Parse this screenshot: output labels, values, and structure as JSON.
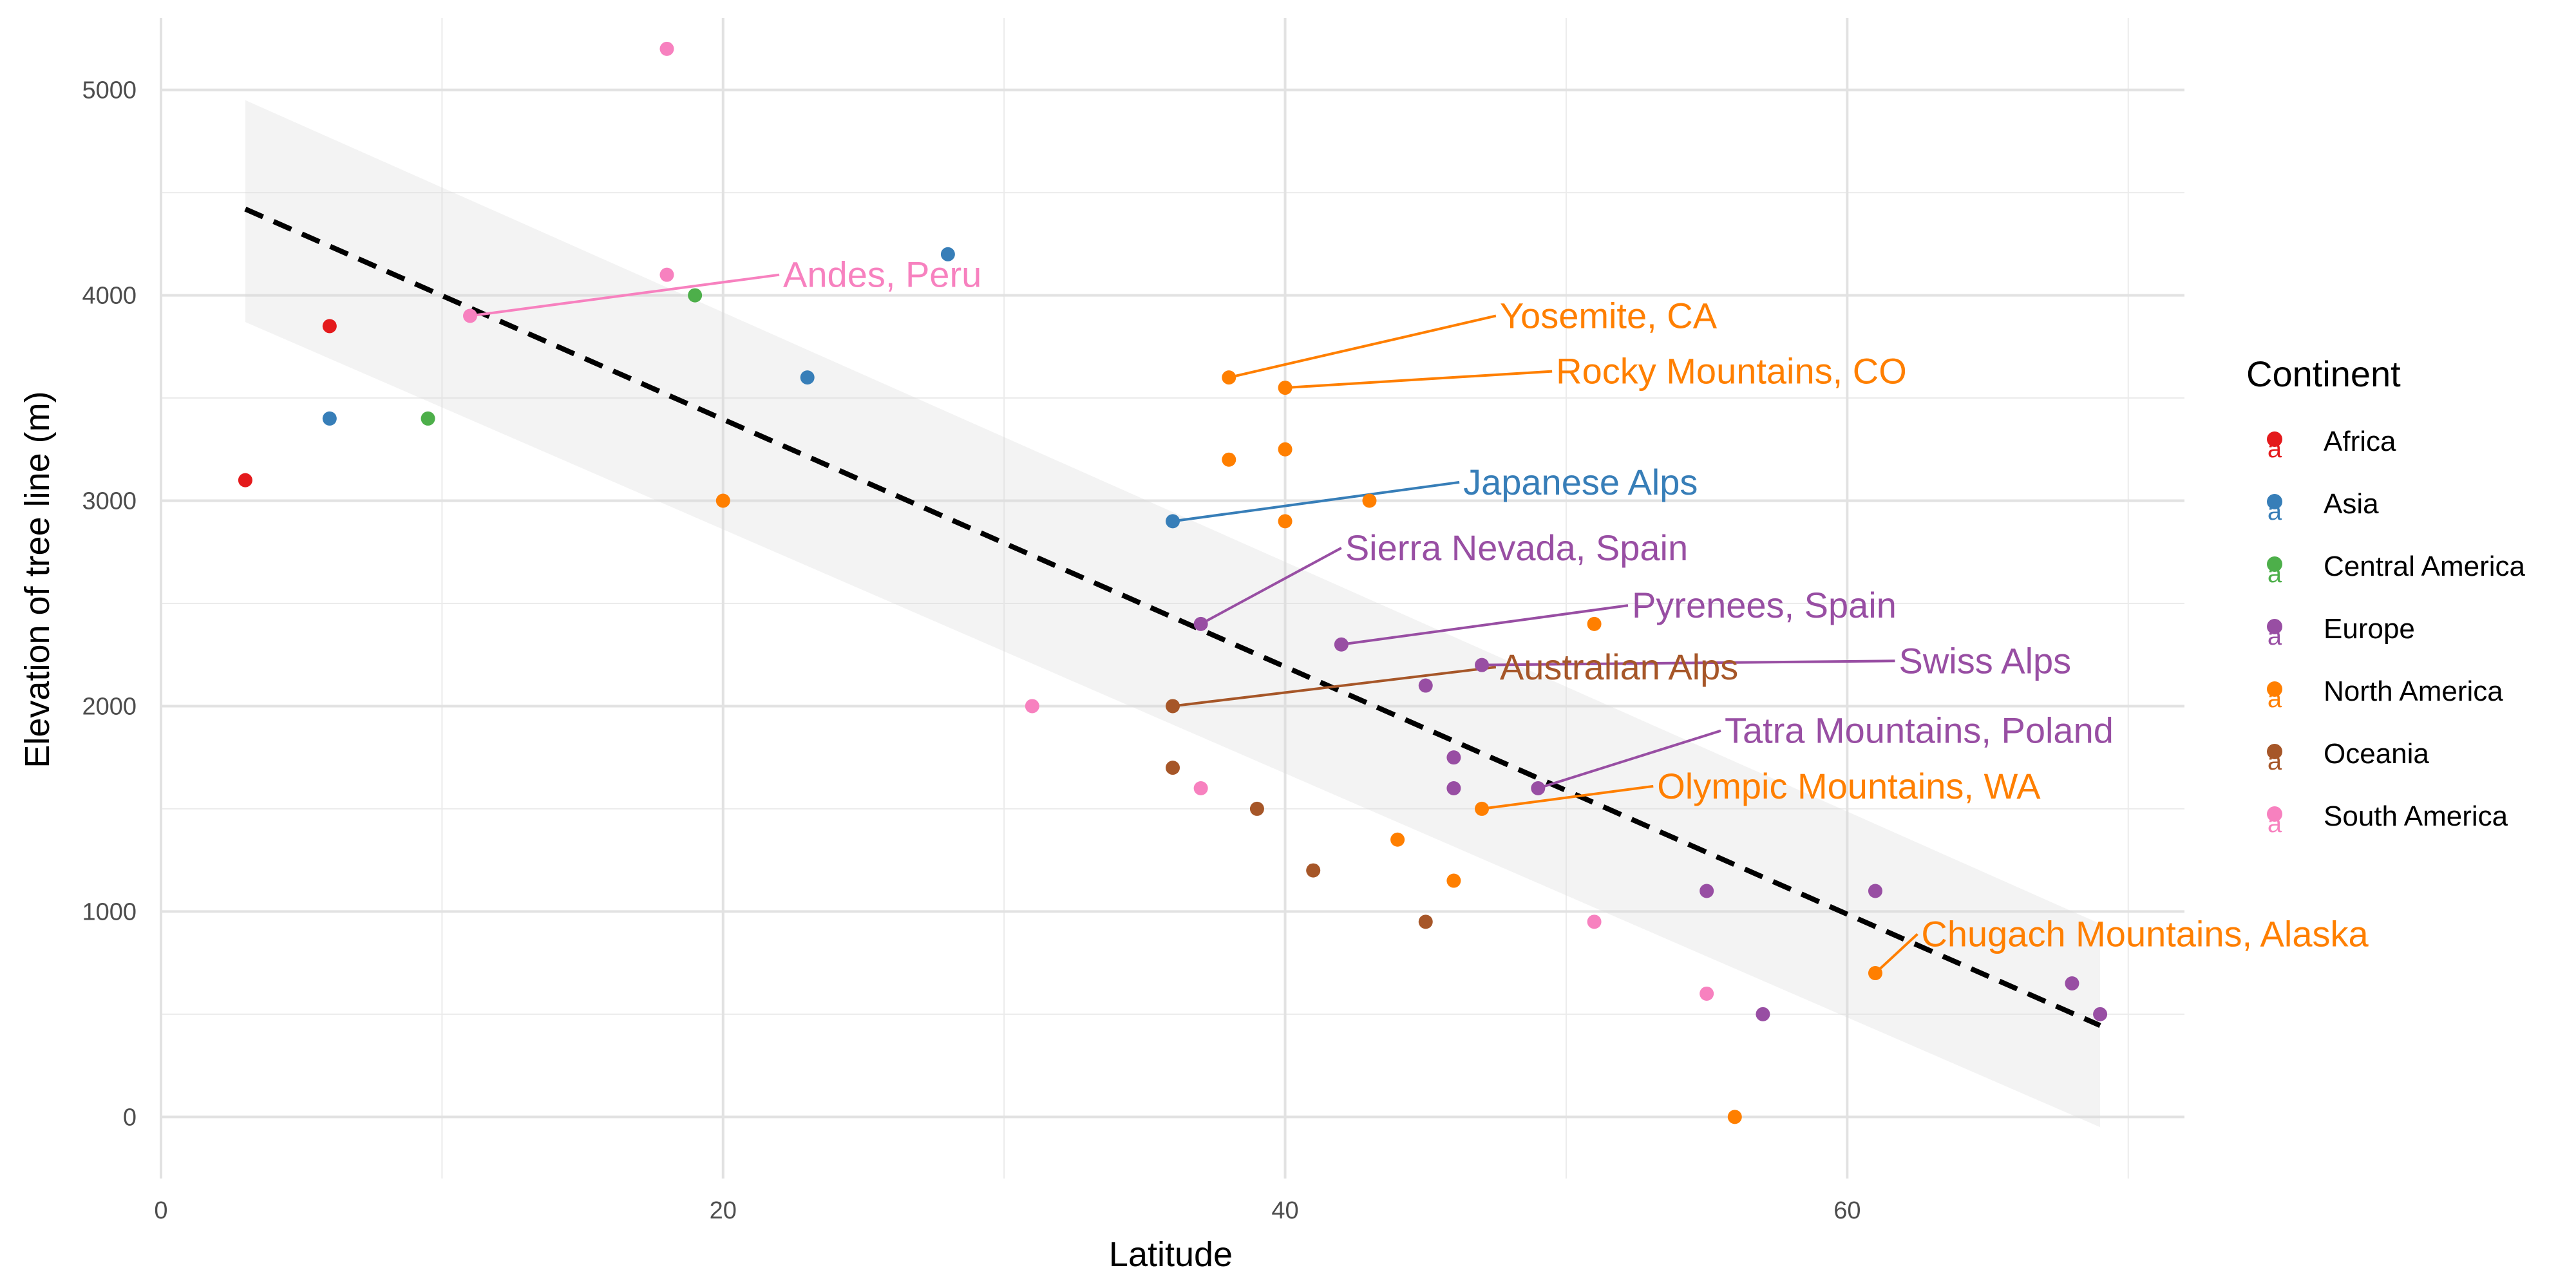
{
  "chart_data": {
    "type": "scatter",
    "xlabel": "Latitude",
    "ylabel": "Elevation of tree line (m)",
    "xlim": [
      0,
      72
    ],
    "ylim": [
      -300,
      5350
    ],
    "x_ticks": [
      "0",
      "20",
      "40",
      "60"
    ],
    "x_tick_values": [
      0,
      20,
      40,
      60
    ],
    "y_ticks": [
      "0",
      "1000",
      "2000",
      "3000",
      "4000",
      "5000"
    ],
    "y_tick_values": [
      0,
      1000,
      2000,
      3000,
      4000,
      5000
    ],
    "grid": true,
    "legend": {
      "title": "Continent",
      "position": "right",
      "key_glyph": "a"
    },
    "colors": {
      "Africa": "#e41a1c",
      "Asia": "#377eb8",
      "Central America": "#4daf4a",
      "Europe": "#984ea3",
      "North America": "#ff7f00",
      "Oceania": "#a65628",
      "South America": "#f781bf"
    },
    "series": [
      {
        "name": "Africa",
        "points": [
          [
            3,
            3100
          ],
          [
            6,
            3850
          ]
        ]
      },
      {
        "name": "Asia",
        "points": [
          [
            6,
            3400
          ],
          [
            23,
            3600
          ],
          [
            28,
            4200
          ],
          [
            36,
            2900
          ]
        ]
      },
      {
        "name": "Central America",
        "points": [
          [
            9.5,
            3400
          ],
          [
            19,
            4000
          ]
        ]
      },
      {
        "name": "Europe",
        "points": [
          [
            37,
            2400
          ],
          [
            42,
            2300
          ],
          [
            45,
            2100
          ],
          [
            46,
            1750
          ],
          [
            46,
            1600
          ],
          [
            47,
            2200
          ],
          [
            49,
            1600
          ],
          [
            55,
            1100
          ],
          [
            57,
            500
          ],
          [
            61,
            1100
          ],
          [
            68,
            650
          ],
          [
            69,
            500
          ]
        ]
      },
      {
        "name": "North America",
        "points": [
          [
            20,
            3000
          ],
          [
            38,
            3600
          ],
          [
            38,
            3200
          ],
          [
            40,
            3550
          ],
          [
            40,
            3250
          ],
          [
            40,
            2900
          ],
          [
            43,
            3000
          ],
          [
            44,
            1350
          ],
          [
            46,
            1150
          ],
          [
            47,
            1500
          ],
          [
            51,
            2400
          ],
          [
            56,
            0
          ],
          [
            61,
            700
          ]
        ]
      },
      {
        "name": "Oceania",
        "points": [
          [
            36,
            2000
          ],
          [
            36,
            1700
          ],
          [
            39,
            1500
          ],
          [
            41,
            1200
          ],
          [
            45,
            950
          ]
        ]
      },
      {
        "name": "South America",
        "points": [
          [
            11,
            3900
          ],
          [
            18,
            5200
          ],
          [
            18,
            4100
          ],
          [
            31,
            2000
          ],
          [
            37,
            1600
          ],
          [
            51,
            950
          ],
          [
            55,
            600
          ]
        ]
      }
    ],
    "trend_line": {
      "x": [
        3,
        69
      ],
      "y": [
        4420,
        445
      ],
      "style": "dashed"
    },
    "confidence_band": {
      "x": [
        3,
        69
      ],
      "upper": [
        4950,
        940
      ],
      "lower": [
        3870,
        -50
      ]
    },
    "annotations": [
      {
        "text": "Andes, Peru",
        "continent": "South America",
        "point": [
          11,
          3900
        ],
        "label_at": [
          22,
          4100
        ]
      },
      {
        "text": "Yosemite, CA",
        "continent": "North America",
        "point": [
          38,
          3600
        ],
        "label_at": [
          47.5,
          3900
        ]
      },
      {
        "text": "Rocky Mountains, CO",
        "continent": "North America",
        "point": [
          40,
          3550
        ],
        "label_at": [
          49.5,
          3630
        ]
      },
      {
        "text": "Japanese Alps",
        "continent": "Asia",
        "point": [
          36,
          2900
        ],
        "label_at": [
          46.2,
          3090
        ]
      },
      {
        "text": "Sierra Nevada, Spain",
        "continent": "Europe",
        "point": [
          37,
          2400
        ],
        "label_at": [
          42,
          2770
        ]
      },
      {
        "text": "Pyrenees, Spain",
        "continent": "Europe",
        "point": [
          42,
          2300
        ],
        "label_at": [
          52.2,
          2490
        ]
      },
      {
        "text": "Swiss Alps",
        "continent": "Europe",
        "point": [
          47,
          2200
        ],
        "label_at": [
          61.7,
          2220
        ]
      },
      {
        "text": "Australian Alps",
        "continent": "Oceania",
        "point": [
          36,
          2000
        ],
        "label_at": [
          47.5,
          2190
        ]
      },
      {
        "text": "Tatra Mountains, Poland",
        "continent": "Europe",
        "point": [
          49,
          1600
        ],
        "label_at": [
          55.5,
          1880
        ]
      },
      {
        "text": "Olympic Mountains, WA",
        "continent": "North America",
        "point": [
          47,
          1500
        ],
        "label_at": [
          53.1,
          1610
        ]
      },
      {
        "text": "Chugach Mountains, Alaska",
        "continent": "North America",
        "point": [
          61,
          700
        ],
        "label_at": [
          62.5,
          890
        ]
      }
    ]
  }
}
